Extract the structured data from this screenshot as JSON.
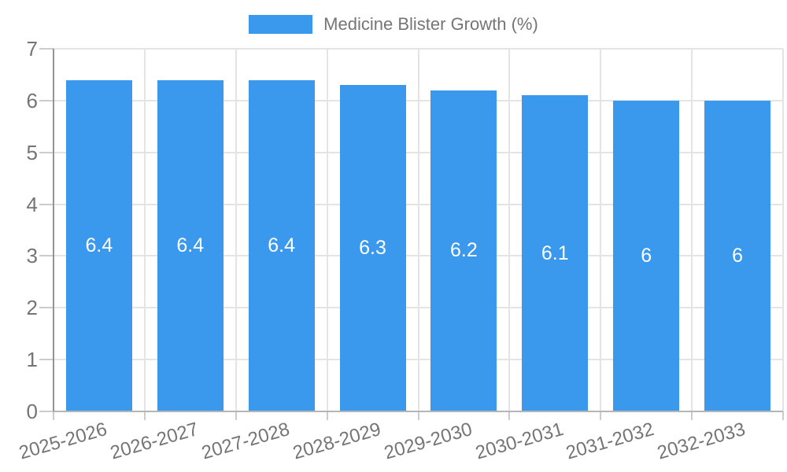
{
  "chart_data": {
    "type": "bar",
    "title": "Medicine Blister Growth (%)",
    "legend_position": "top",
    "categories": [
      "2025-2026",
      "2026-2027",
      "2027-2028",
      "2028-2029",
      "2029-2030",
      "2030-2031",
      "2031-2032",
      "2032-2033"
    ],
    "series": [
      {
        "name": "Medicine Blister Growth (%)",
        "values": [
          6.4,
          6.4,
          6.4,
          6.3,
          6.2,
          6.1,
          6,
          6
        ],
        "value_labels": [
          "6.4",
          "6.4",
          "6.4",
          "6.3",
          "6.2",
          "6.1",
          "6",
          "6"
        ]
      }
    ],
    "xlabel": "",
    "ylabel": "",
    "ylim": [
      0,
      7
    ],
    "yticks": [
      0,
      1,
      2,
      3,
      4,
      5,
      6,
      7
    ],
    "grid": true,
    "x_label_rotation_deg": -16,
    "colors": {
      "bar": "#3A99EC",
      "bar_label": "#FFFFFF",
      "gridline": "#E4E4E4",
      "axis_line": "#949494",
      "baseline": "#B5B5B5",
      "tick_mark": "#CCCCCC",
      "tick_text": "#757575",
      "background": "#FFFFFF"
    }
  }
}
